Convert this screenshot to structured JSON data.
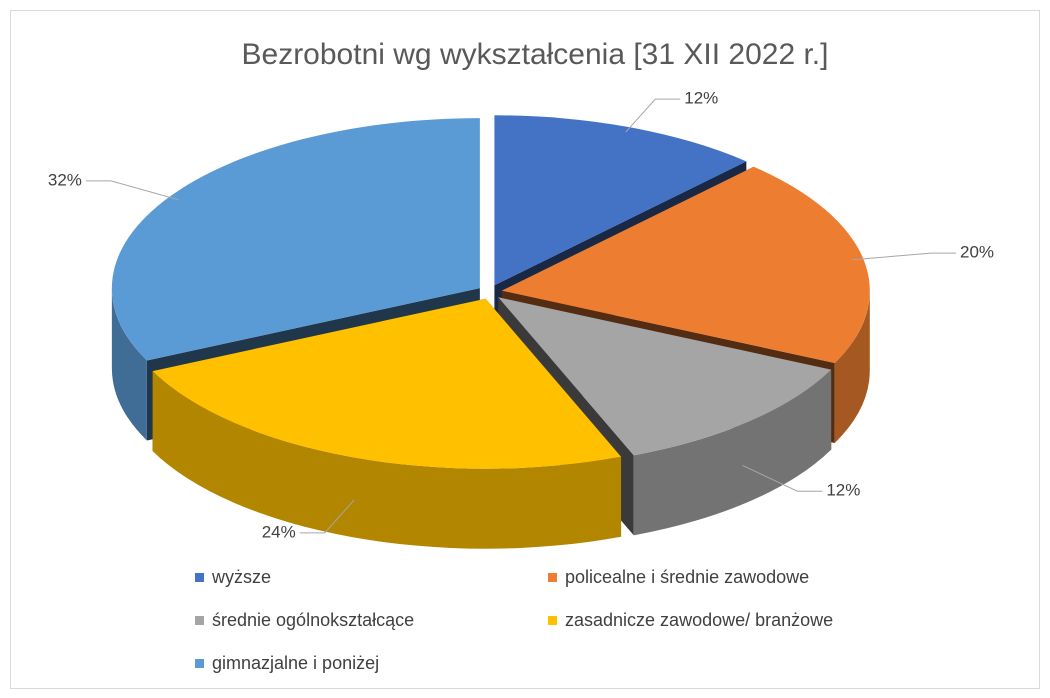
{
  "chart_data": {
    "type": "pie3d",
    "title": "Bezrobotni wg wykształcenia [31 XII 2022 r.]",
    "categories": [
      "wyższe",
      "policealne i średnie zawodowe",
      "średnie ogólnokształcące",
      "zasadnicze zawodowe/ branżowe",
      "gimnazjalne i poniżej"
    ],
    "values": [
      12,
      20,
      12,
      24,
      32
    ],
    "value_labels": [
      "12%",
      "20%",
      "12%",
      "24%",
      "32%"
    ],
    "colors": [
      "#4472c4",
      "#ed7d31",
      "#a5a5a5",
      "#ffc000",
      "#5b9bd5"
    ],
    "legend": "bottom"
  }
}
